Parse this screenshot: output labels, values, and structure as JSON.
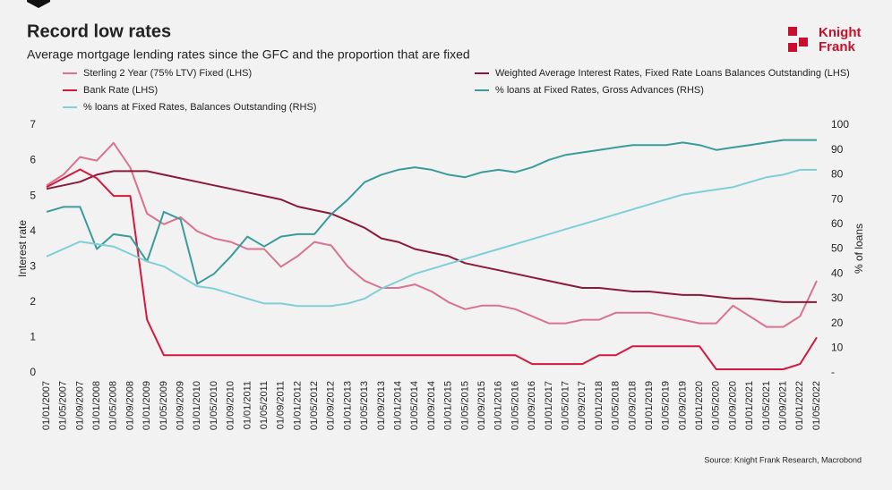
{
  "logo_text": [
    "Knight",
    "Frank"
  ],
  "chart_data": {
    "type": "line",
    "title": "Record low rates",
    "subtitle": "Average mortgage lending rates since the GFC and the proportion that are fixed",
    "ylabel": "Interest rate",
    "y2label": "% of loans",
    "source": "Source: Knight Frank Research, Macrobond",
    "categories": [
      "01/01/2007",
      "01/05/2007",
      "01/09/2007",
      "01/01/2008",
      "01/05/2008",
      "01/09/2008",
      "01/01/2009",
      "01/05/2009",
      "01/09/2009",
      "01/01/2010",
      "01/05/2010",
      "01/09/2010",
      "01/01/2011",
      "01/05/2011",
      "01/09/2011",
      "01/01/2012",
      "01/05/2012",
      "01/09/2012",
      "01/01/2013",
      "01/05/2013",
      "01/09/2013",
      "01/01/2014",
      "01/05/2014",
      "01/09/2014",
      "01/01/2015",
      "01/05/2015",
      "01/09/2015",
      "01/01/2016",
      "01/05/2016",
      "01/09/2016",
      "01/01/2017",
      "01/05/2017",
      "01/09/2017",
      "01/01/2018",
      "01/05/2018",
      "01/09/2018",
      "01/01/2019",
      "01/05/2019",
      "01/09/2019",
      "01/01/2020",
      "01/05/2020",
      "01/09/2020",
      "01/01/2021",
      "01/05/2021",
      "01/09/2021",
      "01/01/2022",
      "01/05/2022"
    ],
    "ylim": [
      0,
      7
    ],
    "yticks": [
      0,
      1,
      2,
      3,
      4,
      5,
      6,
      7
    ],
    "y2lim": [
      0,
      100
    ],
    "y2ticks": [
      {
        "value": 0,
        "label": "-"
      },
      10,
      20,
      30,
      40,
      50,
      60,
      70,
      80,
      90,
      100
    ],
    "series": [
      {
        "name": "Sterling 2 Year (75% LTV) Fixed (LHS)",
        "color": "#d9738f",
        "values": [
          5.3,
          5.6,
          6.1,
          6.0,
          6.5,
          5.8,
          4.5,
          4.2,
          4.4,
          4.0,
          3.8,
          3.7,
          3.5,
          3.5,
          3.0,
          3.3,
          3.7,
          3.6,
          3.0,
          2.6,
          2.4,
          2.4,
          2.5,
          2.3,
          2.0,
          1.8,
          1.9,
          1.9,
          1.8,
          1.6,
          1.4,
          1.4,
          1.5,
          1.5,
          1.7,
          1.7,
          1.7,
          1.6,
          1.5,
          1.4,
          1.4,
          1.9,
          1.6,
          1.3,
          1.3,
          1.6,
          2.6
        ]
      },
      {
        "name": "Weighted Average Interest Rates, Fixed Rate Loans Balances Outstanding (LHS)",
        "color": "#8b1a3a",
        "values": [
          5.2,
          5.3,
          5.4,
          5.6,
          5.7,
          5.7,
          5.7,
          5.6,
          5.5,
          5.4,
          5.3,
          5.2,
          5.1,
          5.0,
          4.9,
          4.7,
          4.6,
          4.5,
          4.3,
          4.1,
          3.8,
          3.7,
          3.5,
          3.4,
          3.3,
          3.1,
          3.0,
          2.9,
          2.8,
          2.7,
          2.6,
          2.5,
          2.4,
          2.4,
          2.35,
          2.3,
          2.3,
          2.25,
          2.2,
          2.2,
          2.15,
          2.1,
          2.1,
          2.05,
          2.0,
          2.0,
          2.0
        ]
      },
      {
        "name": "Bank Rate (LHS)",
        "color": "#d4183d",
        "values": [
          5.25,
          5.5,
          5.75,
          5.5,
          5.0,
          5.0,
          1.5,
          0.5,
          0.5,
          0.5,
          0.5,
          0.5,
          0.5,
          0.5,
          0.5,
          0.5,
          0.5,
          0.5,
          0.5,
          0.5,
          0.5,
          0.5,
          0.5,
          0.5,
          0.5,
          0.5,
          0.5,
          0.5,
          0.5,
          0.25,
          0.25,
          0.25,
          0.25,
          0.5,
          0.5,
          0.75,
          0.75,
          0.75,
          0.75,
          0.75,
          0.1,
          0.1,
          0.1,
          0.1,
          0.1,
          0.25,
          1.0
        ]
      },
      {
        "name": "% loans at Fixed Rates, Gross Advances (RHS)",
        "color": "#3a9c9a",
        "axis": "y2",
        "values": [
          65,
          67,
          67,
          50,
          56,
          55,
          45,
          65,
          62,
          36,
          40,
          47,
          55,
          51,
          55,
          56,
          56,
          64,
          70,
          77,
          80,
          82,
          83,
          82,
          80,
          79,
          81,
          82,
          81,
          83,
          86,
          88,
          89,
          90,
          91,
          92,
          92,
          92,
          93,
          92,
          90,
          91,
          92,
          93,
          94,
          94,
          94
        ]
      },
      {
        "name": "% loans at Fixed Rates, Balances Outstanding (RHS)",
        "color": "#7fcfd6",
        "axis": "y2",
        "values": [
          47,
          50,
          53,
          52,
          51,
          48,
          45,
          43,
          39,
          35,
          34,
          32,
          30,
          28,
          28,
          27,
          27,
          27,
          28,
          30,
          34,
          37,
          40,
          42,
          44,
          46,
          48,
          50,
          52,
          54,
          56,
          58,
          60,
          62,
          64,
          66,
          68,
          70,
          72,
          73,
          74,
          75,
          77,
          79,
          80,
          82,
          82
        ]
      }
    ]
  }
}
